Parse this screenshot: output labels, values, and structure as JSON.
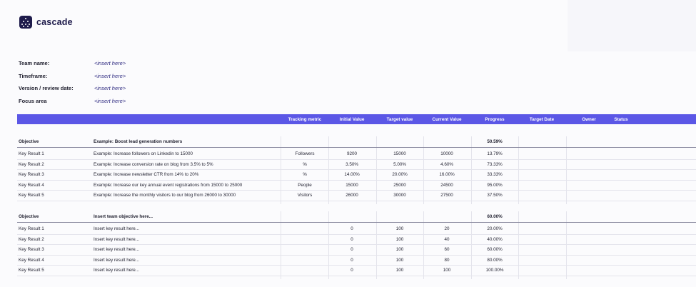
{
  "logo": {
    "text": "cascade"
  },
  "meta": [
    {
      "label": "Team name:",
      "value": "<insert here>"
    },
    {
      "label": "Timeframe:",
      "value": "<insert here>"
    },
    {
      "label": "Version / review date:",
      "value": "<insert here>"
    },
    {
      "label": "Focus area",
      "value": "<insert here>"
    }
  ],
  "columns": {
    "tracking": "Tracking metric",
    "initial": "Initial Value",
    "target": "Target value",
    "current": "Current Value",
    "progress": "Progress",
    "target_date": "Target Date",
    "owner": "Owner",
    "status": "Status"
  },
  "objectives": [
    {
      "label": "Objective",
      "title": "Example: Boost lead generation numbers",
      "progress": "50.59%",
      "key_results": [
        {
          "label": "Key Result 1",
          "text": "Example: Increase followers on Linkedin to 15000",
          "metric": "Followers",
          "initial": "9200",
          "target": "15000",
          "current": "10000",
          "progress": "13.79%"
        },
        {
          "label": "Key Result 2",
          "text": "Example: Increase conversion rate on blog from 3.5% to 5%",
          "metric": "%",
          "initial": "3.50%",
          "target": "5.00%",
          "current": "4.60%",
          "progress": "73.33%"
        },
        {
          "label": "Key Result 3",
          "text": "Example: Increase newsletter CTR from 14% to 20%",
          "metric": "%",
          "initial": "14.00%",
          "target": "20.00%",
          "current": "16.00%",
          "progress": "33.33%"
        },
        {
          "label": "Key Result 4",
          "text": "Example: Increase our key annual event registrations from 15000 to 25000",
          "metric": "People",
          "initial": "15000",
          "target": "25000",
          "current": "24500",
          "progress": "95.00%"
        },
        {
          "label": "Key Result 5",
          "text": "Example: Increase the monthly visitors to our blog from 26000 to 30000",
          "metric": "Visitors",
          "initial": "26000",
          "target": "30000",
          "current": "27500",
          "progress": "37.50%"
        }
      ]
    },
    {
      "label": "Objective",
      "title": "Insert team objective here...",
      "progress": "60.00%",
      "key_results": [
        {
          "label": "Key Result 1",
          "text": "Insert key result here...",
          "metric": "",
          "initial": "0",
          "target": "100",
          "current": "20",
          "progress": "20.00%"
        },
        {
          "label": "Key Result 2",
          "text": "Insert key result here...",
          "metric": "",
          "initial": "0",
          "target": "100",
          "current": "40",
          "progress": "40.00%"
        },
        {
          "label": "Key Result 3",
          "text": "Insert key result here...",
          "metric": "",
          "initial": "0",
          "target": "100",
          "current": "60",
          "progress": "60.00%"
        },
        {
          "label": "Key Result 4",
          "text": "Insert key result here...",
          "metric": "",
          "initial": "0",
          "target": "100",
          "current": "80",
          "progress": "80.00%"
        },
        {
          "label": "Key Result 5",
          "text": "Insert key result here...",
          "metric": "",
          "initial": "0",
          "target": "100",
          "current": "100",
          "progress": "100.00%"
        }
      ]
    }
  ]
}
